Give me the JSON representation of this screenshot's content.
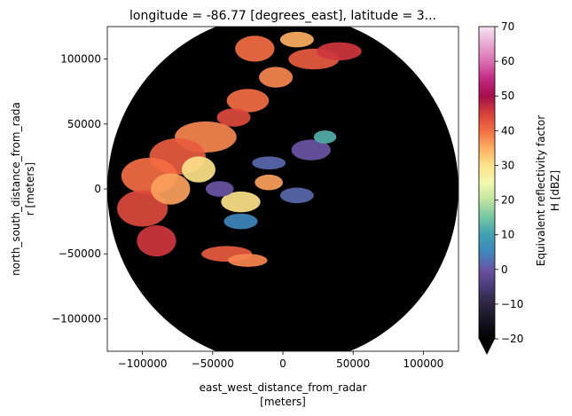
{
  "chart_data": {
    "type": "heatmap",
    "title": "longitude = -86.77 [degrees_east], latitude = 3...",
    "xlabel_line1": "east_west_distance_from_radar",
    "xlabel_line2": "[meters]",
    "ylabel_line1": "north_south_distance_from_rada",
    "ylabel_line2": "r [meters]",
    "xlim": [
      -125000,
      125000
    ],
    "ylim": [
      -125000,
      125000
    ],
    "x_ticks": [
      -100000,
      -50000,
      0,
      50000,
      100000
    ],
    "x_tick_labels": [
      "−100000",
      "−50000",
      "0",
      "50000",
      "100000"
    ],
    "y_ticks": [
      -100000,
      -50000,
      0,
      50000,
      100000
    ],
    "y_tick_labels": [
      "−100000",
      "−50000",
      "0",
      "50000",
      "100000"
    ],
    "radar_range_m": 125000,
    "grid": false,
    "colorbar": {
      "label_line1": "Equivalent reflectivity factor",
      "label_line2": "H [dBZ]",
      "vmin": -20,
      "vmax": 70,
      "extend": "min",
      "ticks": [
        -20,
        -10,
        0,
        10,
        20,
        30,
        40,
        50,
        60,
        70
      ],
      "tick_labels": [
        "−20",
        "−10",
        "0",
        "10",
        "20",
        "30",
        "40",
        "50",
        "60",
        "70"
      ],
      "colormap_stops": [
        {
          "value": -20,
          "color": "#000000"
        },
        {
          "value": -10,
          "color": "#2a2640"
        },
        {
          "value": -5,
          "color": "#4a3a78"
        },
        {
          "value": 0,
          "color": "#6a54a4"
        },
        {
          "value": 5,
          "color": "#3f86bc"
        },
        {
          "value": 10,
          "color": "#3fa1b1"
        },
        {
          "value": 15,
          "color": "#74c6a3"
        },
        {
          "value": 20,
          "color": "#bfe5a0"
        },
        {
          "value": 25,
          "color": "#f3f9ae"
        },
        {
          "value": 30,
          "color": "#fde28a"
        },
        {
          "value": 35,
          "color": "#fdae61"
        },
        {
          "value": 40,
          "color": "#f36d43"
        },
        {
          "value": 45,
          "color": "#d8403a"
        },
        {
          "value": 50,
          "color": "#a40e4b"
        },
        {
          "value": 55,
          "color": "#c42a82"
        },
        {
          "value": 60,
          "color": "#dc6fb0"
        },
        {
          "value": 65,
          "color": "#e9a8d2"
        },
        {
          "value": 70,
          "color": "#f5e4f2"
        }
      ]
    },
    "background_value": -20,
    "echo_regions": [
      {
        "x": -20000,
        "y": 108000,
        "rx": 14000,
        "ry": 10000,
        "value": 40
      },
      {
        "x": 10000,
        "y": 115000,
        "rx": 12000,
        "ry": 6000,
        "value": 35
      },
      {
        "x": 22000,
        "y": 100000,
        "rx": 18000,
        "ry": 8000,
        "value": 42
      },
      {
        "x": 40000,
        "y": 106000,
        "rx": 16000,
        "ry": 7000,
        "value": 46
      },
      {
        "x": -5000,
        "y": 86000,
        "rx": 12000,
        "ry": 8000,
        "value": 38
      },
      {
        "x": -25000,
        "y": 68000,
        "rx": 15000,
        "ry": 9000,
        "value": 40
      },
      {
        "x": -35000,
        "y": 55000,
        "rx": 12000,
        "ry": 7000,
        "value": 44
      },
      {
        "x": -55000,
        "y": 40000,
        "rx": 22000,
        "ry": 12000,
        "value": 38
      },
      {
        "x": -75000,
        "y": 25000,
        "rx": 20000,
        "ry": 14000,
        "value": 42
      },
      {
        "x": -95000,
        "y": 10000,
        "rx": 20000,
        "ry": 14000,
        "value": 40
      },
      {
        "x": -100000,
        "y": -15000,
        "rx": 18000,
        "ry": 14000,
        "value": 44
      },
      {
        "x": -90000,
        "y": -40000,
        "rx": 14000,
        "ry": 12000,
        "value": 46
      },
      {
        "x": -80000,
        "y": 0,
        "rx": 14000,
        "ry": 12000,
        "value": 36
      },
      {
        "x": -60000,
        "y": 15000,
        "rx": 12000,
        "ry": 10000,
        "value": 30
      },
      {
        "x": -40000,
        "y": -50000,
        "rx": 18000,
        "ry": 6000,
        "value": 42
      },
      {
        "x": -25000,
        "y": -55000,
        "rx": 14000,
        "ry": 5000,
        "value": 38
      },
      {
        "x": -30000,
        "y": -10000,
        "rx": 14000,
        "ry": 8000,
        "value": 30
      },
      {
        "x": -10000,
        "y": 5000,
        "rx": 10000,
        "ry": 6000,
        "value": 36
      },
      {
        "x": -10000,
        "y": 20000,
        "rx": 12000,
        "ry": 5000,
        "value": 2
      },
      {
        "x": 20000,
        "y": 30000,
        "rx": 14000,
        "ry": 8000,
        "value": 0
      },
      {
        "x": 30000,
        "y": 40000,
        "rx": 8000,
        "ry": 5000,
        "value": 12
      },
      {
        "x": -30000,
        "y": -25000,
        "rx": 12000,
        "ry": 6000,
        "value": 5
      },
      {
        "x": -45000,
        "y": 0,
        "rx": 10000,
        "ry": 6000,
        "value": 0
      },
      {
        "x": 10000,
        "y": -5000,
        "rx": 12000,
        "ry": 6000,
        "value": 2
      }
    ]
  }
}
